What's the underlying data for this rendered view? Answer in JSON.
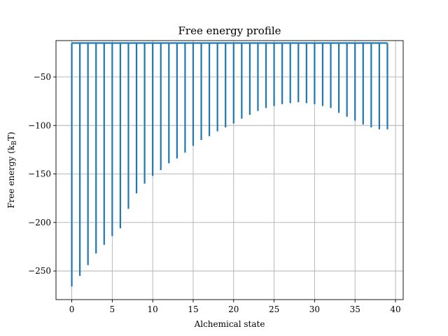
{
  "chart_data": {
    "type": "line",
    "title": "Free energy profile",
    "xlabel": "Alchemical state",
    "ylabel_main": "Free energy (k",
    "ylabel_sub": "B",
    "ylabel_end": "T)",
    "xlim": [
      -1.95,
      40.95
    ],
    "ylim": [
      -279.5,
      -12.5
    ],
    "xticks": [
      0,
      5,
      10,
      15,
      20,
      25,
      30,
      35,
      40
    ],
    "yticks": [
      -250,
      -200,
      -150,
      -100,
      -50
    ],
    "xtick_labels": [
      "0",
      "5",
      "10",
      "15",
      "20",
      "25",
      "30",
      "35",
      "40"
    ],
    "ytick_labels": [
      "−250",
      "−200",
      "−150",
      "−100",
      "−50"
    ],
    "grid": true,
    "series": [
      {
        "name": "free energy",
        "color": "#1f77b4",
        "baseline": -15,
        "x": [
          0,
          1,
          2,
          3,
          4,
          5,
          6,
          7,
          8,
          9,
          10,
          11,
          12,
          13,
          14,
          15,
          16,
          17,
          18,
          19,
          20,
          21,
          22,
          23,
          24,
          25,
          26,
          27,
          28,
          29,
          30,
          31,
          32,
          33,
          34,
          35,
          36,
          37,
          38,
          39
        ],
        "values": [
          -266,
          -255,
          -244,
          -232,
          -223,
          -214,
          -206,
          -186,
          -170,
          -160,
          -152,
          -146,
          -139,
          -134,
          -128,
          -121,
          -115,
          -111,
          -106,
          -102,
          -98,
          -93,
          -89,
          -85,
          -82,
          -80,
          -78,
          -77,
          -76,
          -77,
          -78,
          -80,
          -82,
          -87,
          -91,
          -95,
          -99,
          -102,
          -104,
          -104
        ]
      }
    ]
  }
}
